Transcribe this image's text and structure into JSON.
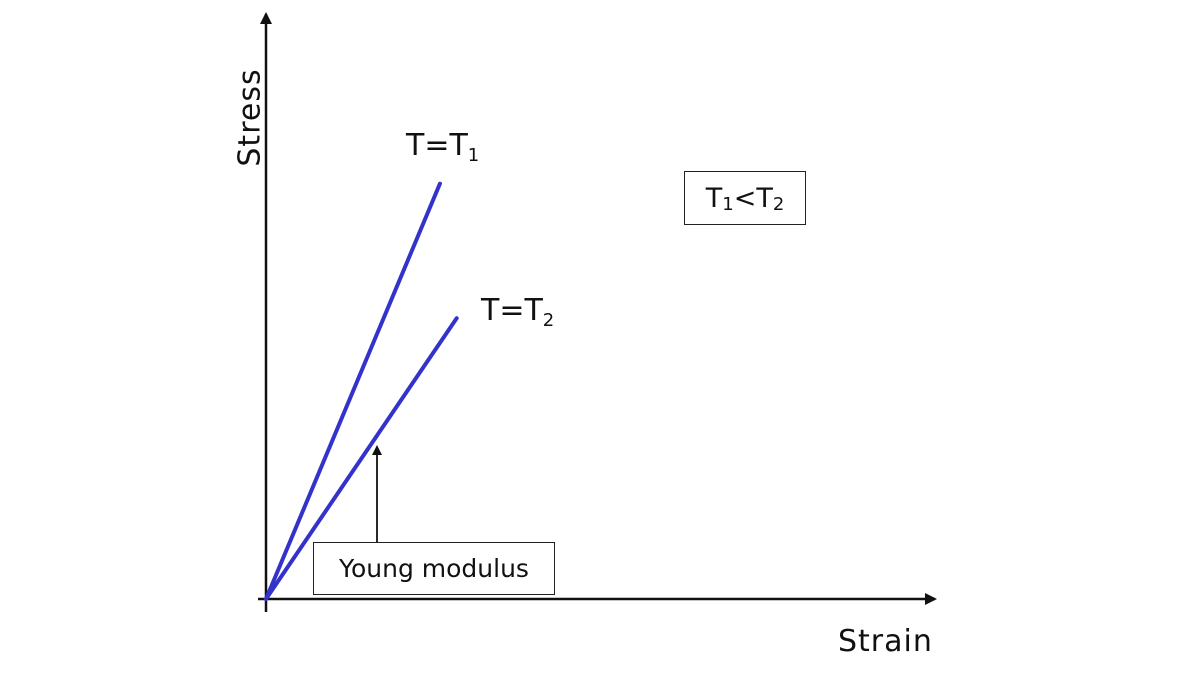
{
  "chart_data": {
    "type": "line",
    "xlabel": "Strain",
    "ylabel": "Stress",
    "xlim": [
      0,
      10
    ],
    "ylim": [
      0,
      10
    ],
    "grid": false,
    "legend": "none",
    "series": [
      {
        "name": "T=T1",
        "label_main": "T=T",
        "label_sub": "1",
        "color": "#3333cc",
        "x": [
          0,
          2.6
        ],
        "y": [
          0,
          7.1
        ]
      },
      {
        "name": "T=T2",
        "label_main": "T=T",
        "label_sub": "2",
        "color": "#3333cc",
        "x": [
          0,
          2.85
        ],
        "y": [
          0,
          4.8
        ]
      }
    ],
    "annotations": {
      "condition": {
        "main1": "T",
        "sub1": "1",
        "op": "<",
        "main2": "T",
        "sub2": "2"
      },
      "arrow_label": "Young modulus"
    }
  }
}
